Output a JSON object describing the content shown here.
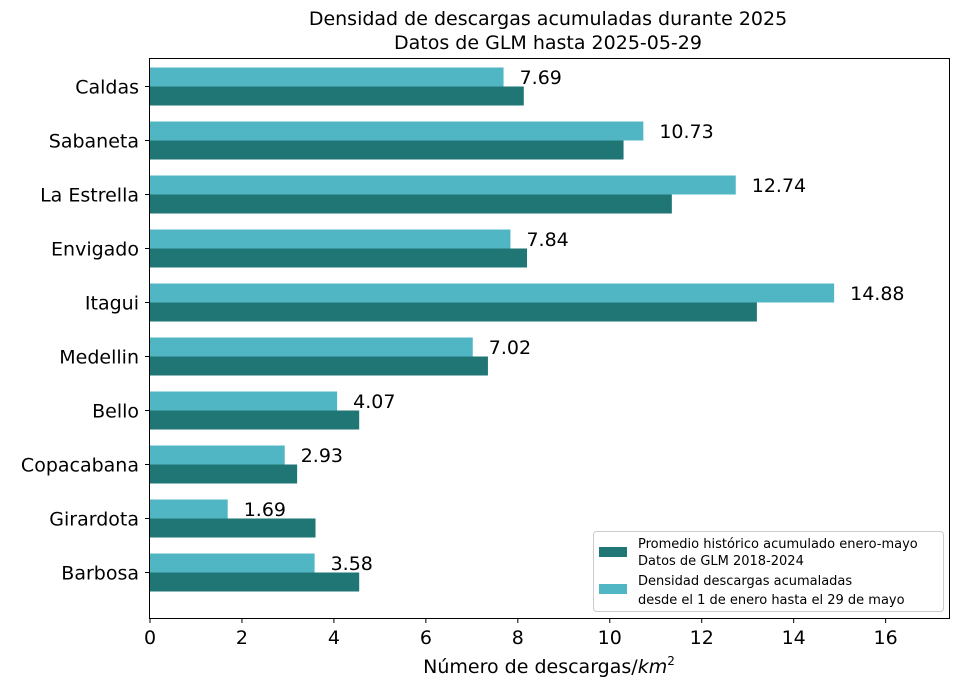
{
  "chart_data": {
    "type": "bar",
    "orientation": "horizontal",
    "title": "Densidad de descargas acumuladas durante 2025",
    "subtitle": "Datos de GLM hasta 2025-05-29",
    "xlabel": "Número de descargas/",
    "xlabel_unit": "km",
    "xlabel_exp": "2",
    "ylabel": "",
    "xlim": [
      0,
      17.4
    ],
    "xticks": [
      0,
      2,
      4,
      6,
      8,
      10,
      12,
      14,
      16
    ],
    "xtick_labels": [
      "0",
      "2",
      "4",
      "6",
      "8",
      "10",
      "12",
      "14",
      "16"
    ],
    "categories": [
      "Caldas",
      "Sabaneta",
      "La Estrella",
      "Envigado",
      "Itagui",
      "Medellin",
      "Bello",
      "Copacabana",
      "Girardota",
      "Barbosa"
    ],
    "series": [
      {
        "key": "historico",
        "legend_line1": "Promedio histórico acumulado enero-mayo",
        "legend_line2": "Datos de GLM 2018-2024",
        "color": "#207575",
        "values": [
          8.13,
          10.3,
          11.35,
          8.2,
          13.2,
          7.35,
          4.55,
          3.2,
          3.6,
          4.55
        ]
      },
      {
        "key": "2025",
        "legend_line1": "Densidad descargas acumaladas",
        "legend_line2": "desde el 1 de enero hasta el 29 de mayo",
        "color": "#50b6c4",
        "values": [
          7.69,
          10.73,
          12.74,
          7.84,
          14.88,
          7.02,
          4.07,
          2.93,
          1.69,
          3.58
        ],
        "labels": [
          "7.69",
          "10.73",
          "12.74",
          "7.84",
          "14.88",
          "7.02",
          "4.07",
          "2.93",
          "1.69",
          "3.58"
        ]
      }
    ],
    "grid": false,
    "legend_position": "lower-right"
  }
}
